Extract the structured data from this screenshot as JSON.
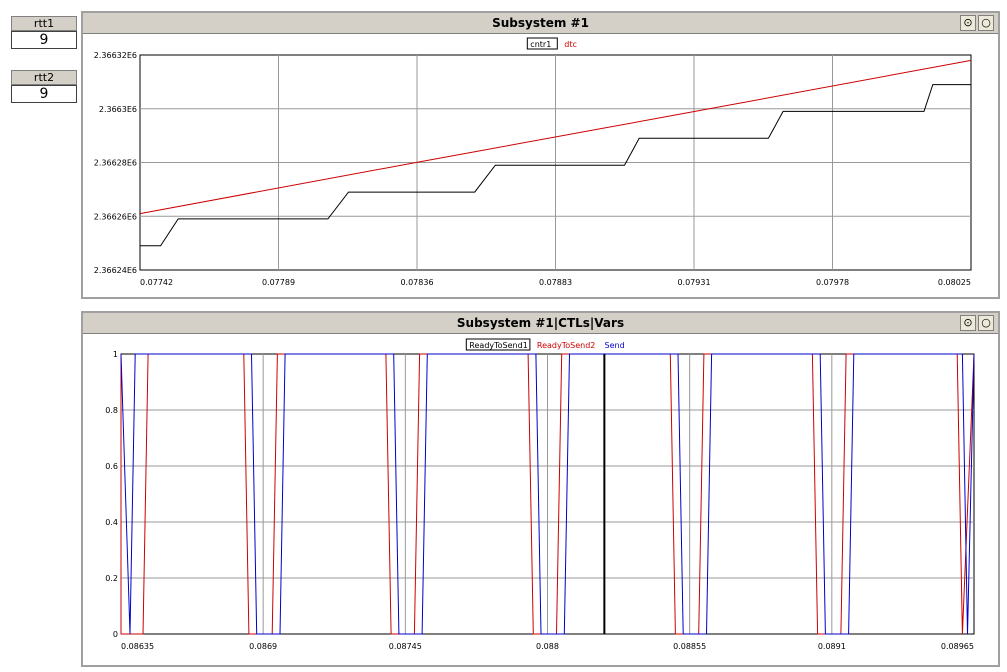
{
  "meters": [
    {
      "label": "rtt1",
      "value": "9"
    },
    {
      "label": "rtt2",
      "value": "9"
    }
  ],
  "panels": [
    {
      "title": "Subsystem #1",
      "buttons": {
        "pin_icon": "pin-icon",
        "close_icon": "circle-icon"
      },
      "chart_data": {
        "type": "line",
        "xlim": [
          0.07742,
          0.08025
        ],
        "ylim": [
          2366240,
          2366320
        ],
        "x_ticks": [
          "0.07742",
          "0.07789",
          "0.07836",
          "0.07883",
          "0.07931",
          "0.07978",
          "0.08025"
        ],
        "y_ticks": [
          "2.36624E6",
          "2.36626E6",
          "2.36628E6",
          "2.3663E6",
          "2.36632E6"
        ],
        "grid": true,
        "legend_position": "top-center",
        "series": [
          {
            "name": "cntr1",
            "color": "#000000",
            "step": true,
            "points": [
              [
                0.07742,
                2366249
              ],
              [
                0.07749,
                2366249
              ],
              [
                0.07755,
                2366259
              ],
              [
                0.07806,
                2366259
              ],
              [
                0.07813,
                2366269
              ],
              [
                0.07856,
                2366269
              ],
              [
                0.07863,
                2366279
              ],
              [
                0.07907,
                2366279
              ],
              [
                0.07912,
                2366289
              ],
              [
                0.07956,
                2366289
              ],
              [
                0.07961,
                2366299
              ],
              [
                0.08009,
                2366299
              ],
              [
                0.08012,
                2366309
              ],
              [
                0.08025,
                2366309
              ]
            ]
          },
          {
            "name": "dtc",
            "color": "#cc0000",
            "step": false,
            "points": [
              [
                0.07742,
                2366261
              ],
              [
                0.07836,
                2366280
              ],
              [
                0.07931,
                2366299
              ],
              [
                0.08025,
                2366318
              ]
            ]
          }
        ]
      }
    },
    {
      "title": "Subsystem #1|CTLs|Vars",
      "buttons": {
        "pin_icon": "pin-icon",
        "close_icon": "circle-icon"
      },
      "chart_data": {
        "type": "line",
        "xlim": [
          0.08635,
          0.08965
        ],
        "ylim": [
          0,
          1
        ],
        "x_ticks": [
          "0.08635",
          "0.0869",
          "0.08745",
          "0.088",
          "0.08855",
          "0.0891",
          "0.08965"
        ],
        "y_ticks": [
          "0",
          "0.2",
          "0.4",
          "0.6",
          "0.8",
          "1"
        ],
        "grid": true,
        "legend_position": "top-center",
        "cursor_x": 0.08822,
        "pulse_period": 0.000553,
        "series": [
          {
            "name": "ReadyToSend1",
            "color": "#000000",
            "dips": []
          },
          {
            "name": "ReadyToSend2",
            "color": "#cc0000",
            "dips": [
              0.08639,
              0.08689,
              0.08744,
              0.08799,
              0.08854,
              0.08909,
              0.08965
            ]
          },
          {
            "name": "Send",
            "color": "#0000cc",
            "dips": [
              0.08634,
              0.08692,
              0.08747,
              0.08802,
              0.08857,
              0.08912,
              0.08967
            ]
          }
        ]
      }
    }
  ]
}
